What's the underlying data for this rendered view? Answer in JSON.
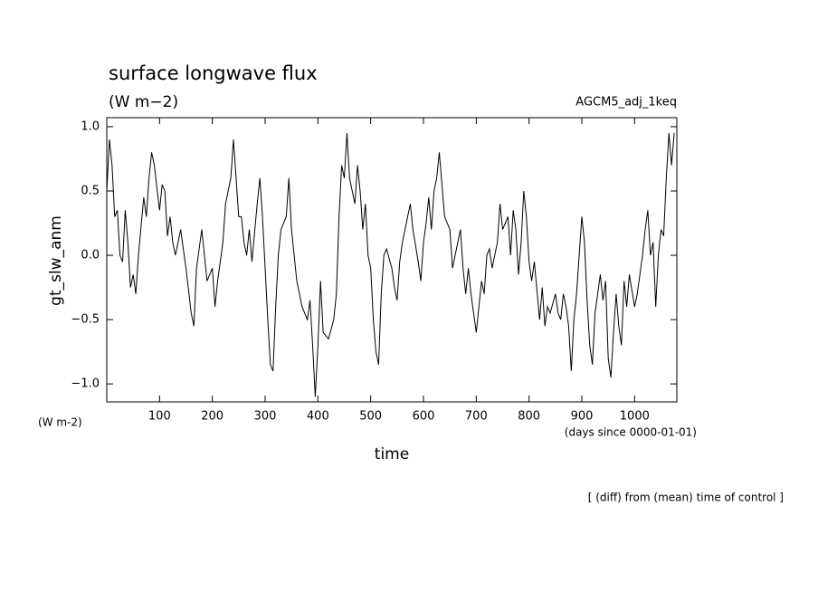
{
  "chart_data": {
    "type": "line",
    "title": "surface longwave flux",
    "subtitle": "(W m−2)",
    "annotation": "AGCM5_adj_1keq",
    "ylabel": "gt_slw_anm",
    "yunit": "(W m-2)",
    "xunit": "(days since 0000-01-01)",
    "xlabel": "time",
    "footnote": "[ (diff) from (mean) time of control ]",
    "color": "#000000",
    "xlim": [
      0,
      1080
    ],
    "ylim": [
      -1.14,
      1.07
    ],
    "xticks": [
      100,
      200,
      300,
      400,
      500,
      600,
      700,
      800,
      900,
      1000
    ],
    "yticks": [
      {
        "value": -1.0,
        "label": "−1.0"
      },
      {
        "value": -0.5,
        "label": "−0.5"
      },
      {
        "value": 0.0,
        "label": "0.0"
      },
      {
        "value": 0.5,
        "label": "0.5"
      },
      {
        "value": 1.0,
        "label": "1.0"
      }
    ],
    "x": [
      0,
      5,
      10,
      15,
      20,
      25,
      30,
      35,
      40,
      45,
      50,
      55,
      60,
      70,
      75,
      80,
      85,
      90,
      100,
      105,
      110,
      115,
      120,
      125,
      130,
      140,
      150,
      160,
      165,
      170,
      180,
      185,
      190,
      200,
      205,
      210,
      220,
      225,
      235,
      240,
      245,
      250,
      255,
      260,
      265,
      270,
      275,
      285,
      290,
      295,
      300,
      305,
      310,
      315,
      320,
      325,
      330,
      340,
      345,
      350,
      355,
      360,
      370,
      380,
      385,
      390,
      395,
      400,
      405,
      410,
      420,
      430,
      435,
      440,
      445,
      450,
      455,
      460,
      465,
      470,
      475,
      480,
      485,
      490,
      495,
      500,
      505,
      510,
      515,
      520,
      525,
      530,
      540,
      545,
      550,
      555,
      560,
      570,
      575,
      580,
      590,
      595,
      600,
      605,
      610,
      615,
      620,
      625,
      630,
      635,
      640,
      650,
      655,
      660,
      670,
      675,
      680,
      685,
      690,
      700,
      705,
      710,
      715,
      720,
      725,
      730,
      740,
      745,
      750,
      760,
      765,
      770,
      775,
      780,
      785,
      790,
      795,
      800,
      805,
      810,
      820,
      825,
      830,
      835,
      840,
      850,
      855,
      860,
      865,
      870,
      875,
      880,
      885,
      890,
      895,
      900,
      905,
      910,
      915,
      920,
      925,
      930,
      935,
      940,
      945,
      950,
      955,
      960,
      965,
      970,
      975,
      980,
      985,
      990,
      1000,
      1005,
      1010,
      1015,
      1020,
      1025,
      1030,
      1035,
      1040,
      1045,
      1050,
      1055,
      1060,
      1065,
      1070,
      1075
    ],
    "values": [
      0.5,
      0.9,
      0.7,
      0.3,
      0.35,
      0.0,
      -0.05,
      0.35,
      0.1,
      -0.25,
      -0.15,
      -0.3,
      0.0,
      0.45,
      0.3,
      0.6,
      0.8,
      0.7,
      0.35,
      0.55,
      0.5,
      0.15,
      0.3,
      0.1,
      0.0,
      0.2,
      -0.1,
      -0.45,
      -0.55,
      -0.1,
      0.2,
      0.0,
      -0.2,
      -0.1,
      -0.4,
      -0.2,
      0.1,
      0.4,
      0.6,
      0.9,
      0.6,
      0.3,
      0.3,
      0.1,
      0.0,
      0.2,
      -0.05,
      0.4,
      0.6,
      0.3,
      -0.1,
      -0.5,
      -0.85,
      -0.9,
      -0.4,
      0.0,
      0.2,
      0.3,
      0.6,
      0.2,
      0.0,
      -0.2,
      -0.4,
      -0.5,
      -0.35,
      -0.7,
      -1.1,
      -0.7,
      -0.2,
      -0.6,
      -0.65,
      -0.5,
      -0.3,
      0.3,
      0.7,
      0.6,
      0.95,
      0.6,
      0.5,
      0.4,
      0.7,
      0.5,
      0.2,
      0.4,
      0.0,
      -0.1,
      -0.5,
      -0.75,
      -0.85,
      -0.3,
      0.0,
      0.05,
      -0.1,
      -0.25,
      -0.35,
      -0.05,
      0.1,
      0.3,
      0.4,
      0.2,
      -0.05,
      -0.2,
      0.1,
      0.25,
      0.45,
      0.2,
      0.5,
      0.6,
      0.8,
      0.55,
      0.3,
      0.2,
      -0.1,
      0.0,
      0.2,
      -0.1,
      -0.3,
      -0.1,
      -0.3,
      -0.6,
      -0.4,
      -0.2,
      -0.3,
      0.0,
      0.05,
      -0.1,
      0.1,
      0.4,
      0.2,
      0.3,
      0.0,
      0.35,
      0.2,
      -0.15,
      0.1,
      0.5,
      0.3,
      -0.05,
      -0.2,
      -0.05,
      -0.5,
      -0.25,
      -0.55,
      -0.4,
      -0.45,
      -0.3,
      -0.45,
      -0.5,
      -0.3,
      -0.4,
      -0.55,
      -0.9,
      -0.5,
      -0.3,
      0.0,
      0.3,
      0.1,
      -0.35,
      -0.7,
      -0.85,
      -0.45,
      -0.3,
      -0.15,
      -0.35,
      -0.2,
      -0.8,
      -0.95,
      -0.6,
      -0.3,
      -0.55,
      -0.7,
      -0.2,
      -0.4,
      -0.15,
      -0.4,
      -0.3,
      -0.15,
      0.0,
      0.2,
      0.35,
      0.0,
      0.1,
      -0.4,
      0.0,
      0.2,
      0.15,
      0.6,
      0.95,
      0.7,
      0.95
    ]
  }
}
